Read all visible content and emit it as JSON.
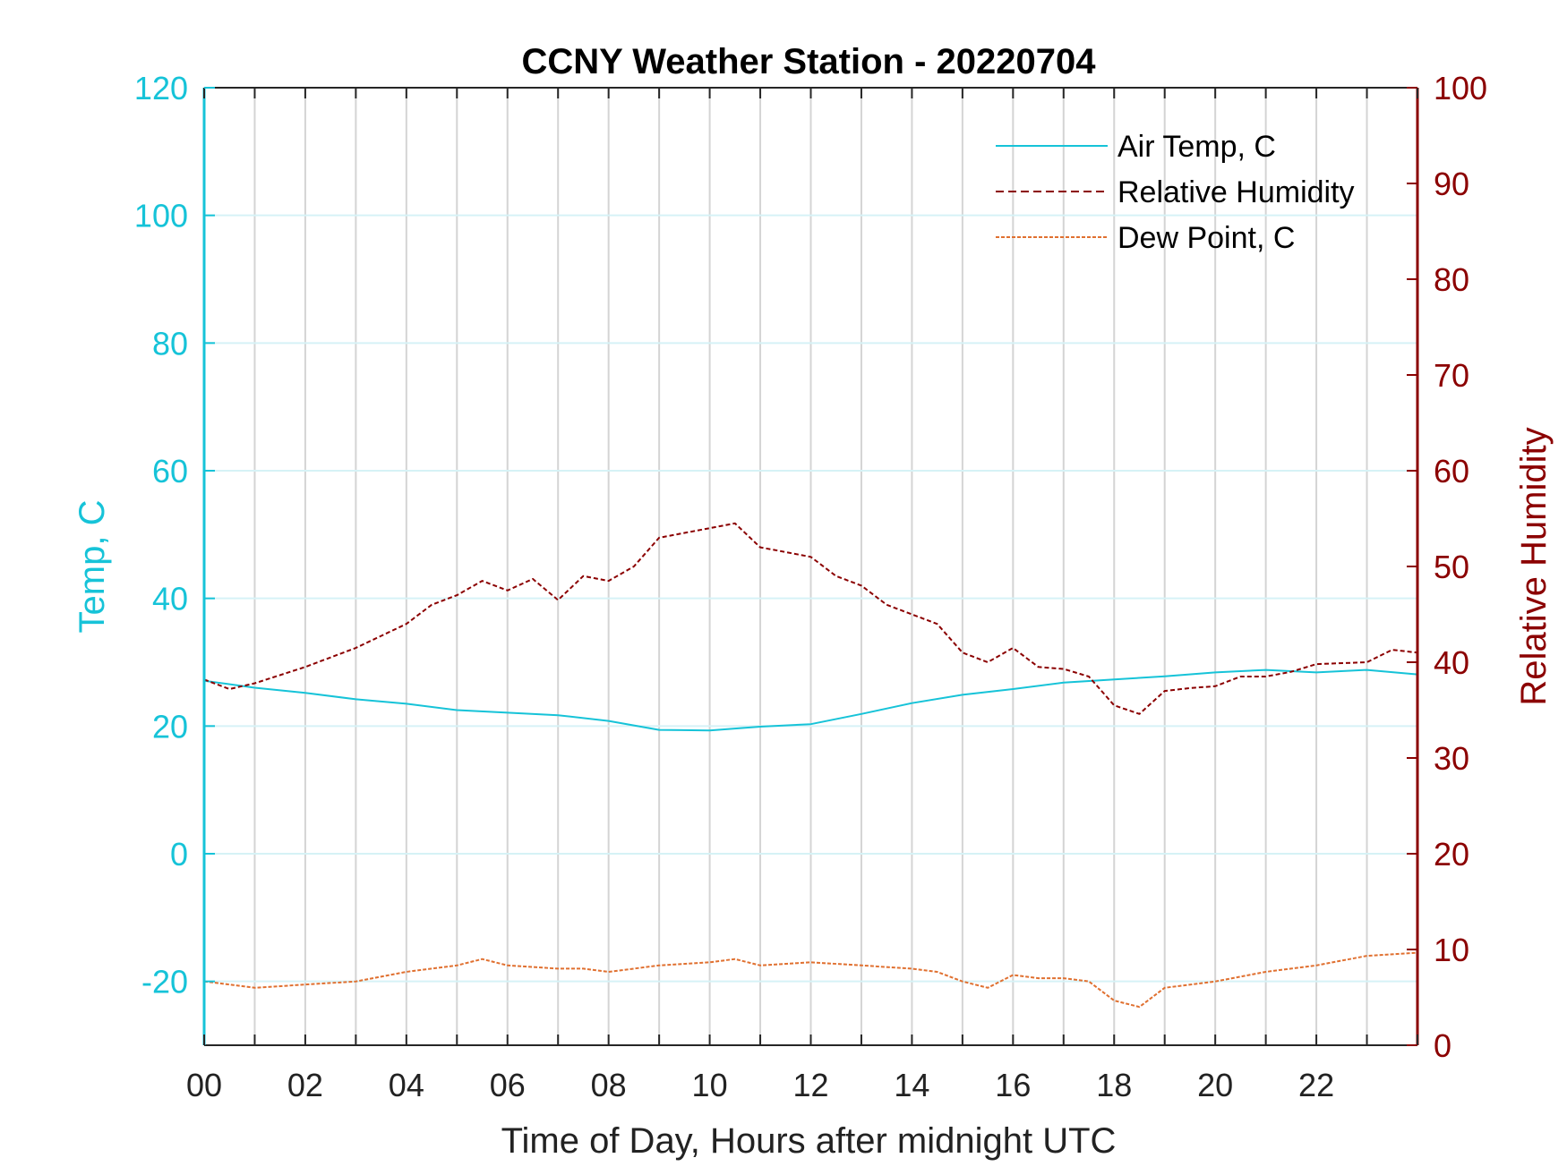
{
  "chart_data": {
    "type": "line",
    "title": "CCNY Weather Station - 20220704",
    "xlabel": "Time of Day, Hours after midnight UTC",
    "ylabel_left": "Temp, C",
    "ylabel_right": "Relative Humidity",
    "xlim": [
      0,
      24
    ],
    "ylim_left": [
      -30,
      120
    ],
    "ylim_right": [
      0,
      100
    ],
    "x_ticks": [
      0,
      2,
      4,
      6,
      8,
      10,
      12,
      14,
      16,
      18,
      20,
      22
    ],
    "x_tick_labels": [
      "00",
      "02",
      "04",
      "06",
      "08",
      "10",
      "12",
      "14",
      "16",
      "18",
      "20",
      "22"
    ],
    "y_ticks_left": [
      -20,
      0,
      20,
      40,
      60,
      80,
      100,
      120
    ],
    "y_tick_labels_left": [
      "-20",
      "0",
      "20",
      "40",
      "60",
      "80",
      "100",
      "120"
    ],
    "y_ticks_right": [
      0,
      10,
      20,
      30,
      40,
      50,
      60,
      70,
      80,
      90,
      100
    ],
    "y_tick_labels_right": [
      "0",
      "10",
      "20",
      "30",
      "40",
      "50",
      "60",
      "70",
      "80",
      "90",
      "100"
    ],
    "grid": true,
    "legend_position": "top-right",
    "colors": {
      "left_axis": "#16c3d8",
      "right_axis": "#8b0000",
      "dew_point": "#e07030"
    },
    "series": [
      {
        "name": "Air Temp, C",
        "axis": "left",
        "style": "solid",
        "color": "#16c3d8",
        "points": [
          [
            0,
            27.1
          ],
          [
            1,
            26
          ],
          [
            2,
            25.2
          ],
          [
            3,
            24.2
          ],
          [
            4,
            23.5
          ],
          [
            5,
            22.5
          ],
          [
            6,
            22.1
          ],
          [
            7,
            21.7
          ],
          [
            8,
            20.8
          ],
          [
            9,
            19.4
          ],
          [
            10,
            19.3
          ],
          [
            11,
            19.9
          ],
          [
            12,
            20.3
          ],
          [
            13,
            21.9
          ],
          [
            14,
            23.6
          ],
          [
            15,
            24.9
          ],
          [
            16,
            25.8
          ],
          [
            17,
            26.8
          ],
          [
            18,
            27.3
          ],
          [
            19,
            27.8
          ],
          [
            20,
            28.4
          ],
          [
            21,
            28.8
          ],
          [
            22,
            28.4
          ],
          [
            23,
            28.8
          ],
          [
            24,
            28.1
          ]
        ]
      },
      {
        "name": "Relative Humidity",
        "axis": "right",
        "style": "dashed",
        "color": "#8b0000",
        "points": [
          [
            0,
            38.2
          ],
          [
            0.5,
            37.2
          ],
          [
            1,
            37.8
          ],
          [
            2,
            39.5
          ],
          [
            3,
            41.5
          ],
          [
            4,
            44
          ],
          [
            4.5,
            46
          ],
          [
            5,
            47
          ],
          [
            5.5,
            48.5
          ],
          [
            6,
            47.5
          ],
          [
            6.5,
            48.7
          ],
          [
            7,
            46.5
          ],
          [
            7.5,
            49
          ],
          [
            8,
            48.5
          ],
          [
            8.5,
            50
          ],
          [
            9,
            53
          ],
          [
            9.5,
            53.5
          ],
          [
            10,
            54
          ],
          [
            10.5,
            54.5
          ],
          [
            11,
            52
          ],
          [
            11.5,
            51.5
          ],
          [
            12,
            51
          ],
          [
            12.5,
            49
          ],
          [
            13,
            48
          ],
          [
            13.5,
            46
          ],
          [
            14,
            45
          ],
          [
            14.5,
            44
          ],
          [
            15,
            41
          ],
          [
            15.5,
            40
          ],
          [
            16,
            41.5
          ],
          [
            16.5,
            39.5
          ],
          [
            17,
            39.3
          ],
          [
            17.5,
            38.5
          ],
          [
            18,
            35.5
          ],
          [
            18.5,
            34.6
          ],
          [
            19,
            37
          ],
          [
            19.5,
            37.3
          ],
          [
            20,
            37.5
          ],
          [
            20.5,
            38.5
          ],
          [
            21,
            38.5
          ],
          [
            21.5,
            39
          ],
          [
            22,
            39.8
          ],
          [
            23,
            40
          ],
          [
            23.5,
            41.3
          ],
          [
            24,
            41
          ]
        ]
      },
      {
        "name": "Dew Point, C",
        "axis": "left",
        "style": "dashed",
        "color": "#e07030",
        "points": [
          [
            0,
            -20
          ],
          [
            0.5,
            -20.5
          ],
          [
            1,
            -21
          ],
          [
            2,
            -20.5
          ],
          [
            3,
            -20
          ],
          [
            4,
            -18.5
          ],
          [
            5,
            -17.5
          ],
          [
            5.5,
            -16.5
          ],
          [
            6,
            -17.5
          ],
          [
            7,
            -18
          ],
          [
            7.5,
            -18
          ],
          [
            8,
            -18.5
          ],
          [
            9,
            -17.5
          ],
          [
            10,
            -17
          ],
          [
            10.5,
            -16.5
          ],
          [
            11,
            -17.5
          ],
          [
            12,
            -17
          ],
          [
            13,
            -17.5
          ],
          [
            14,
            -18
          ],
          [
            14.5,
            -18.5
          ],
          [
            15,
            -20
          ],
          [
            15.5,
            -21
          ],
          [
            16,
            -19
          ],
          [
            16.5,
            -19.5
          ],
          [
            17,
            -19.5
          ],
          [
            17.5,
            -20
          ],
          [
            18,
            -23
          ],
          [
            18.5,
            -24
          ],
          [
            19,
            -21
          ],
          [
            20,
            -20
          ],
          [
            21,
            -18.5
          ],
          [
            22,
            -17.5
          ],
          [
            23,
            -16
          ],
          [
            24,
            -15.5
          ]
        ]
      }
    ]
  }
}
